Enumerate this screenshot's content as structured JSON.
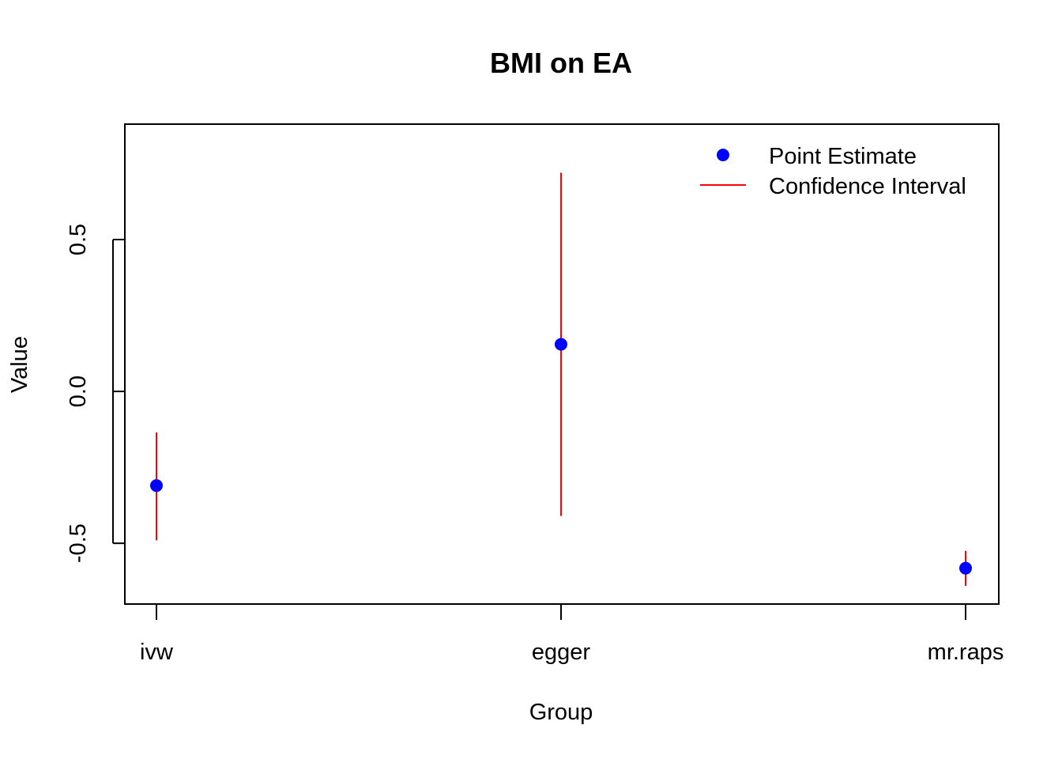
{
  "chart_data": {
    "type": "scatter",
    "title": "BMI on EA",
    "xlabel": "Group",
    "ylabel": "Value",
    "categories": [
      "ivw",
      "egger",
      "mr.raps"
    ],
    "series": [
      {
        "name": "Point Estimate",
        "values": [
          -0.31,
          0.155,
          -0.582
        ]
      },
      {
        "name": "Confidence Interval",
        "lower": [
          -0.49,
          -0.41,
          -0.64
        ],
        "upper": [
          -0.135,
          0.72,
          -0.525
        ]
      }
    ],
    "ylim": [
      -0.7,
      0.88
    ],
    "yticks": [
      "-0.5",
      "0.0",
      "0.5"
    ],
    "grid": false,
    "legend": "top-right",
    "colors": {
      "point": "#0000ff",
      "interval": "#ff0000"
    }
  }
}
